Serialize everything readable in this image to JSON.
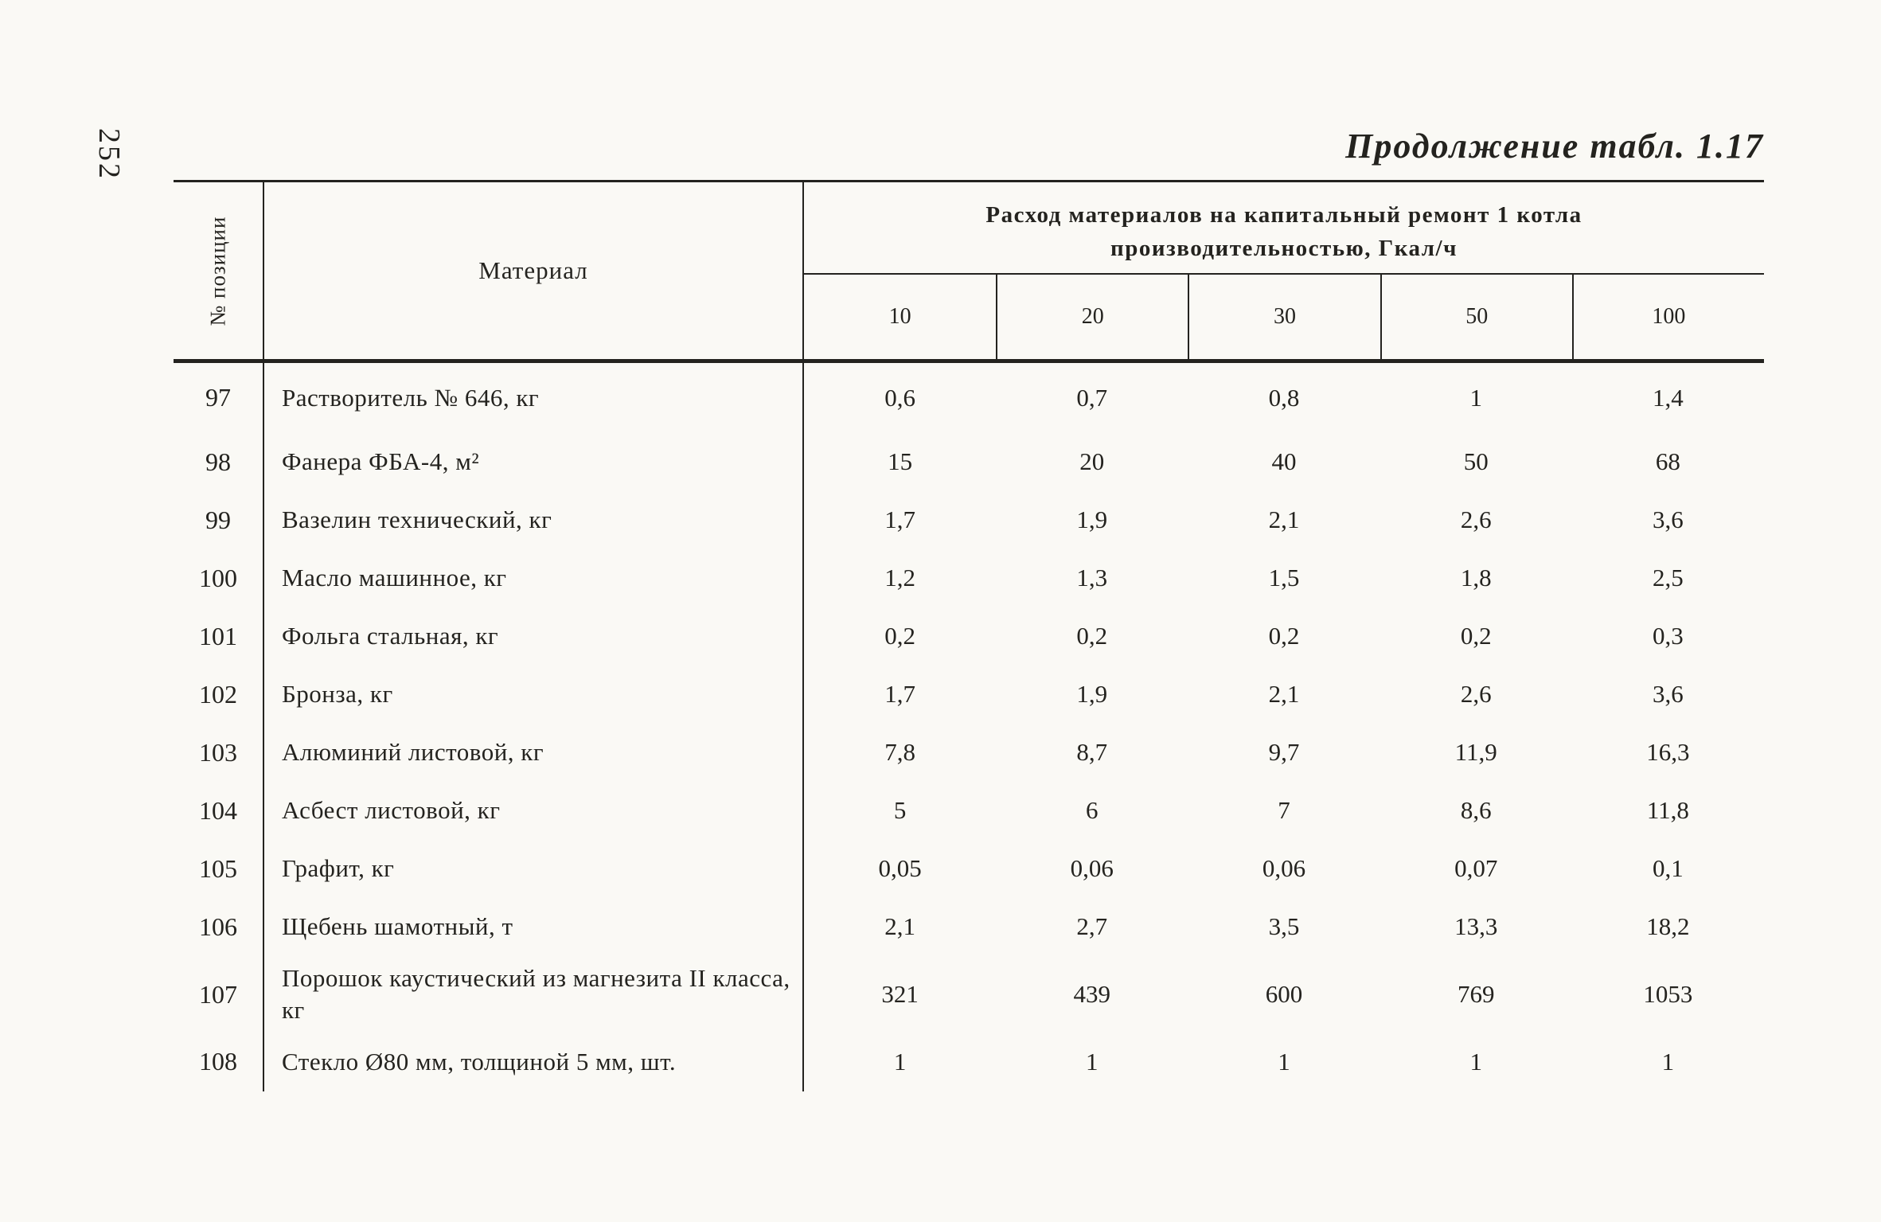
{
  "colors": {
    "paper": "#faf9f5",
    "ink": "#24231f"
  },
  "page": {
    "number": "252",
    "continuation_title": "Продолжение табл. 1.17"
  },
  "table": {
    "position_header": "№ позиции",
    "material_header": "Материал",
    "group_header_line1": "Расход материалов на капитальный ремонт 1 котла",
    "group_header_line2": "производительностью, Гкал/ч",
    "capacity_headers": [
      "10",
      "20",
      "30",
      "50",
      "100"
    ],
    "rows": [
      {
        "pos": "97",
        "material": "Растворитель № 646, кг",
        "values": [
          "0,6",
          "0,7",
          "0,8",
          "1",
          "1,4"
        ]
      },
      {
        "pos": "98",
        "material": "Фанера ФБА-4, м²",
        "values": [
          "15",
          "20",
          "40",
          "50",
          "68"
        ]
      },
      {
        "pos": "99",
        "material": "Вазелин технический, кг",
        "values": [
          "1,7",
          "1,9",
          "2,1",
          "2,6",
          "3,6"
        ]
      },
      {
        "pos": "100",
        "material": "Масло машинное, кг",
        "values": [
          "1,2",
          "1,3",
          "1,5",
          "1,8",
          "2,5"
        ]
      },
      {
        "pos": "101",
        "material": "Фольга стальная, кг",
        "values": [
          "0,2",
          "0,2",
          "0,2",
          "0,2",
          "0,3"
        ]
      },
      {
        "pos": "102",
        "material": "Бронза, кг",
        "values": [
          "1,7",
          "1,9",
          "2,1",
          "2,6",
          "3,6"
        ]
      },
      {
        "pos": "103",
        "material": "Алюминий листовой, кг",
        "values": [
          "7,8",
          "8,7",
          "9,7",
          "11,9",
          "16,3"
        ]
      },
      {
        "pos": "104",
        "material": "Асбест листовой, кг",
        "values": [
          "5",
          "6",
          "7",
          "8,6",
          "11,8"
        ]
      },
      {
        "pos": "105",
        "material": "Графит, кг",
        "values": [
          "0,05",
          "0,06",
          "0,06",
          "0,07",
          "0,1"
        ]
      },
      {
        "pos": "106",
        "material": "Щебень шамотный, т",
        "values": [
          "2,1",
          "2,7",
          "3,5",
          "13,3",
          "18,2"
        ]
      },
      {
        "pos": "107",
        "material": "Порошок каустический из магнезита II класса, кг",
        "values": [
          "321",
          "439",
          "600",
          "769",
          "1053"
        ]
      },
      {
        "pos": "108",
        "material": "Стекло Ø80 мм, толщиной 5 мм, шт.",
        "values": [
          "1",
          "1",
          "1",
          "1",
          "1"
        ]
      }
    ]
  }
}
